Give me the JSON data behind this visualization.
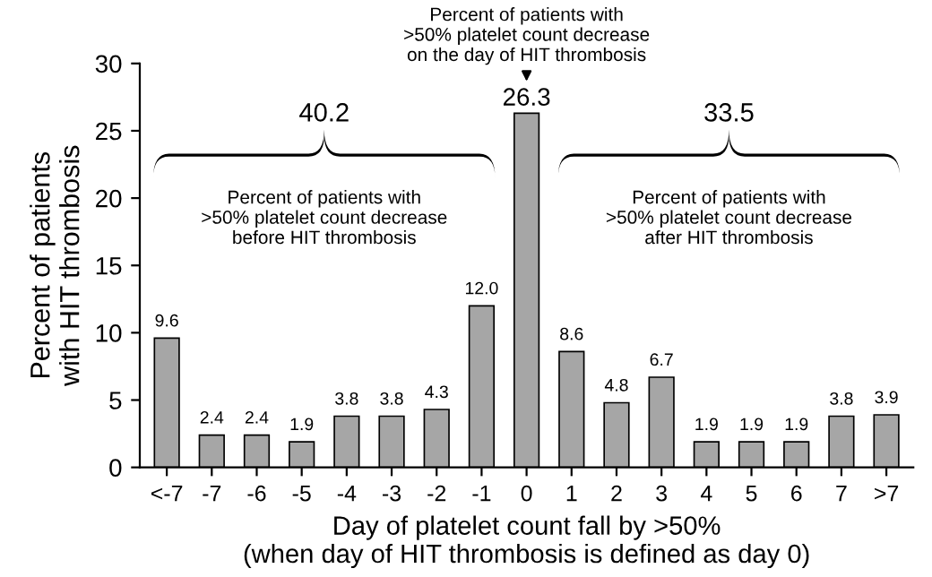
{
  "chart_data": {
    "type": "bar",
    "categories": [
      "<-7",
      "-7",
      "-6",
      "-5",
      "-4",
      "-3",
      "-2",
      "-1",
      "0",
      "1",
      "2",
      "3",
      "4",
      "5",
      "6",
      "7",
      ">7"
    ],
    "values": [
      9.6,
      2.4,
      2.4,
      1.9,
      3.8,
      3.8,
      4.3,
      12.0,
      26.3,
      8.6,
      4.8,
      6.7,
      1.9,
      1.9,
      1.9,
      3.8,
      3.9
    ],
    "value_labels": [
      "9.6",
      "2.4",
      "2.4",
      "1.9",
      "3.8",
      "3.8",
      "4.3",
      "12.0",
      "26.3",
      "8.6",
      "4.8",
      "6.7",
      "1.9",
      "1.9",
      "1.9",
      "3.8",
      "3.9"
    ],
    "color": "#a6a6a6",
    "xlabel": "Day of platelet count fall by >50%\n(when day of HIT thrombosis is defined as day 0)",
    "ylabel": "Percent of patients\nwith HIT thrombosis",
    "ylim": [
      0,
      30
    ],
    "yticks": [
      0,
      5,
      10,
      15,
      20,
      25,
      30
    ],
    "grid": false,
    "legend": false,
    "annotations": [
      "Percent of patients with\n>50% platelet count decrease\non the day of HIT thrombosis",
      "40.2",
      "Percent of patients with\n>50% platelet count decrease\nbefore HIT thrombosis",
      "33.5",
      "Percent of patients with\n>50% platelet count decrease\nafter HIT thrombosis"
    ]
  }
}
